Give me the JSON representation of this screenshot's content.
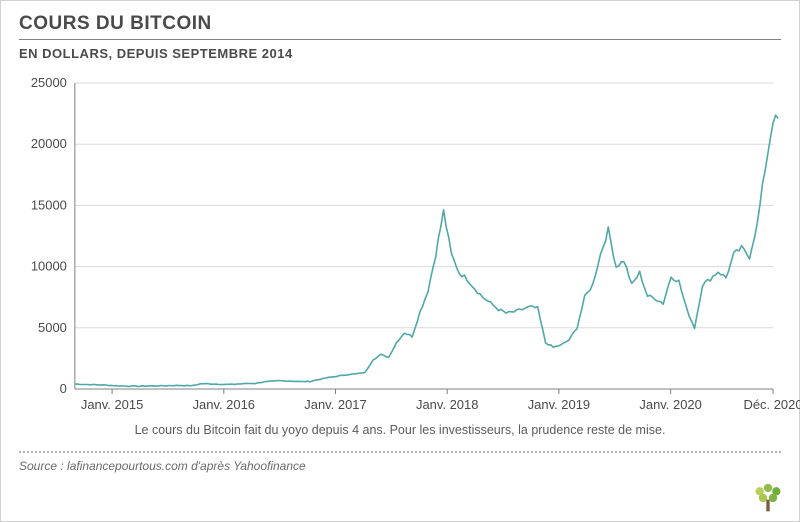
{
  "title": "COURS DU BITCOIN",
  "subtitle": "EN DOLLARS, DEPUIS SEPTEMBRE 2014",
  "caption": "Le cours du Bitcoin fait du yoyo depuis 4 ans. Pour les investisseurs, la prudence reste de mise.",
  "source": "Source : lafinancepourtous.com d'après Yahoofinance",
  "chart": {
    "type": "line",
    "background_color": "#ffffff",
    "grid_color": "#d9d9d9",
    "axis_color": "#808080",
    "line_color": "#4fa8a8",
    "line_width": 1.6,
    "ylim": [
      0,
      25000
    ],
    "ytick_step": 5000,
    "yticks": [
      0,
      5000,
      10000,
      15000,
      20000,
      25000
    ],
    "x_start_month_index": 0,
    "x_end_month_index": 75,
    "xticks": [
      {
        "i": 4,
        "label": "Janv. 2015"
      },
      {
        "i": 16,
        "label": "Janv. 2016"
      },
      {
        "i": 28,
        "label": "Janv. 2017"
      },
      {
        "i": 40,
        "label": "Janv. 2018"
      },
      {
        "i": 52,
        "label": "Janv. 2019"
      },
      {
        "i": 64,
        "label": "Janv. 2020"
      },
      {
        "i": 75,
        "label": "Déc. 2020"
      }
    ],
    "values": [
      400,
      380,
      360,
      340,
      320,
      280,
      250,
      240,
      230,
      240,
      250,
      260,
      280,
      290,
      280,
      270,
      430,
      420,
      400,
      380,
      370,
      420,
      450,
      460,
      580,
      620,
      680,
      660,
      640,
      600,
      620,
      760,
      900,
      1000,
      1100,
      1200,
      1250,
      1350,
      2400,
      2800,
      2600,
      3800,
      4600,
      4300,
      6300,
      8000,
      11000,
      14500,
      11000,
      9500,
      9000,
      8200,
      7500,
      7000,
      6500,
      6200,
      6300,
      6500,
      6700,
      6600,
      3800,
      3400,
      3600,
      4000,
      5000,
      7500,
      8500,
      11000,
      13000,
      10000,
      10500,
      8500,
      9500,
      7600,
      7400,
      7000,
      9200,
      8800,
      6500,
      5000,
      8500,
      9000,
      9600,
      9100,
      11000,
      11500,
      10800,
      13500,
      18000,
      22000
    ],
    "label_fontsize": 13,
    "label_color": "#4a4a4a"
  }
}
